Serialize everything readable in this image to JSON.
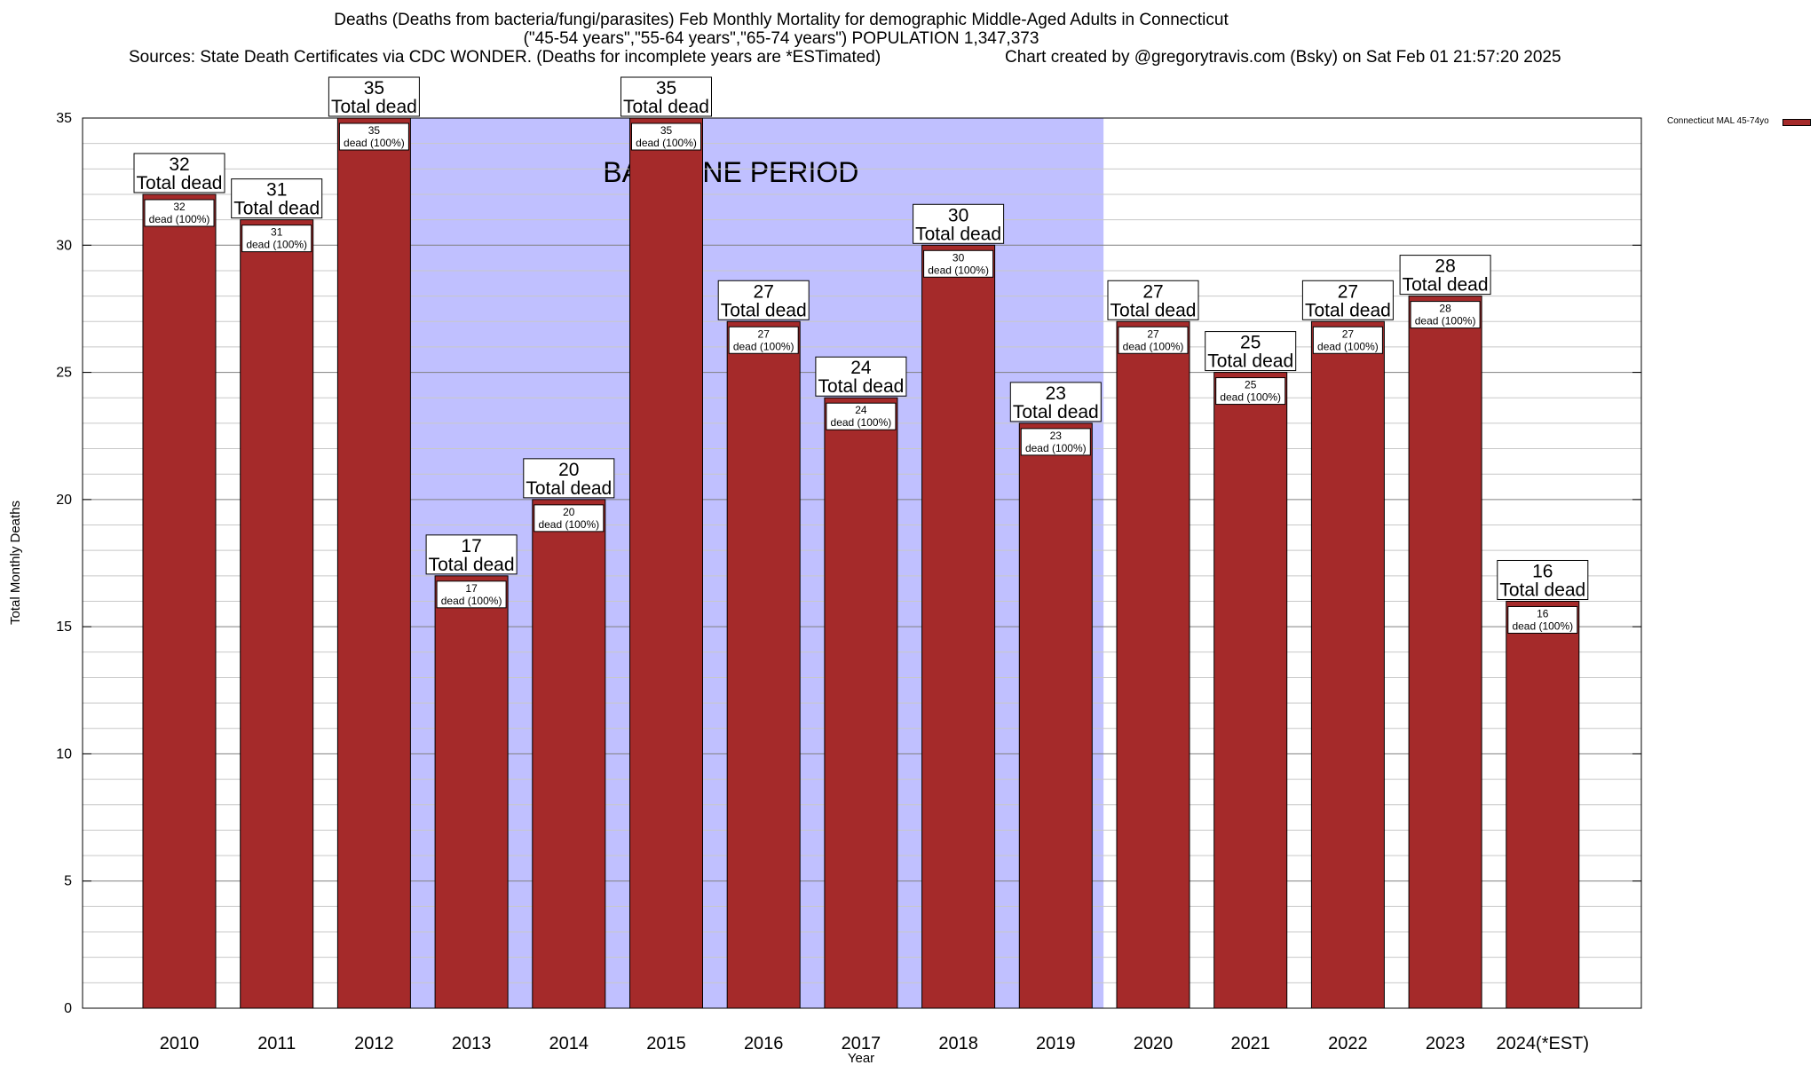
{
  "header": {
    "title_line1": "Deaths (Deaths from bacteria/fungi/parasites) Feb Monthly Mortality for demographic Middle-Aged Adults in Connecticut",
    "title_line2": "(\"45-54 years\",\"55-64 years\",\"65-74 years\") POPULATION 1,347,373",
    "sources": "Sources: State Death Certificates via CDC WONDER. (Deaths for incomplete years are *ESTimated)",
    "credit": "Chart created by @gregorytravis.com (Bsky) on Sat Feb 01 21:57:20 2025"
  },
  "chart_data": {
    "type": "bar",
    "categories": [
      "2010",
      "2011",
      "2012",
      "2013",
      "2014",
      "2015",
      "2016",
      "2017",
      "2018",
      "2019",
      "2020",
      "2021",
      "2022",
      "2023",
      "2024(*EST)"
    ],
    "series": [
      {
        "name": "Connecticut MAL 45-74yo",
        "values": [
          32,
          31,
          35,
          17,
          20,
          35,
          27,
          24,
          30,
          23,
          27,
          25,
          27,
          28,
          16
        ]
      }
    ],
    "xlabel": "Year",
    "ylabel": "Total Monthly Deaths",
    "ylim": [
      0,
      35
    ],
    "yticks": [
      0,
      5,
      10,
      15,
      20,
      25,
      30,
      35
    ],
    "grid": true,
    "legend_position": "top-right",
    "bar_label_top": "Total dead",
    "bar_label_inner_prefix": "dead",
    "bar_label_inner_pct": "(100%)",
    "baseline_band": {
      "label": "BASELINE PERIOD",
      "from_category": "2012",
      "to_category": "2019"
    },
    "colors": {
      "bar": "#a52a2a",
      "baseline_band": "#c0c0ff",
      "grid": "#a0a0a0"
    }
  }
}
